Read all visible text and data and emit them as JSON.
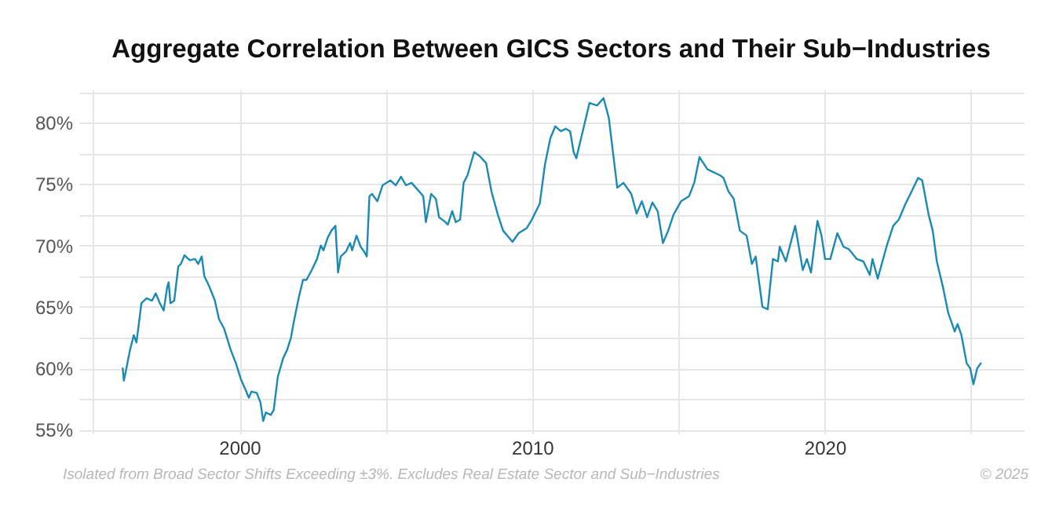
{
  "chart_data": {
    "type": "line",
    "title": "Aggregate Correlation Between GICS Sectors and Their Sub−Industries",
    "annotations": [
      "Isolated from Broad Sector Shifts Exceeding ±3%. Excludes Real Estate Sector and Sub−Industries",
      "© 2025"
    ],
    "xlim": [
      1994.5,
      2026.8
    ],
    "xticks": [
      {
        "value": 1995,
        "label": null
      },
      2000,
      {
        "value": 2005,
        "label": null
      },
      2010,
      {
        "value": 2015,
        "label": null
      },
      2020,
      {
        "value": 2025,
        "label": null
      }
    ],
    "ylim": [
      54.7,
      82.7
    ],
    "yticks": [
      {
        "value": 55,
        "label": "55%"
      },
      {
        "value": 57.5,
        "label": null
      },
      {
        "value": 60,
        "label": "60%"
      },
      {
        "value": 62.5,
        "label": null
      },
      {
        "value": 65,
        "label": "65%"
      },
      {
        "value": 67.5,
        "label": null
      },
      {
        "value": 70,
        "label": "70%"
      },
      {
        "value": 72.5,
        "label": null
      },
      {
        "value": 75,
        "label": "75%"
      },
      {
        "value": 77.5,
        "label": null
      },
      {
        "value": 80,
        "label": "80%"
      },
      {
        "value": 82.5,
        "label": null
      }
    ],
    "grid": true,
    "marker": "none",
    "line_style": "solid",
    "x": [
      1996.01,
      1996.05,
      1996.12,
      1996.26,
      1996.39,
      1996.48,
      1996.56,
      1996.65,
      1996.83,
      1997.01,
      1997.14,
      1997.28,
      1997.41,
      1997.53,
      1997.58,
      1997.64,
      1997.77,
      1997.91,
      1998.0,
      1998.12,
      1998.3,
      1998.48,
      1998.59,
      1998.71,
      1998.8,
      1998.98,
      1999.16,
      1999.3,
      1999.48,
      1999.7,
      1999.88,
      2000.05,
      2000.2,
      2000.32,
      2000.41,
      2000.59,
      2000.72,
      2000.81,
      2000.9,
      2001.07,
      2001.17,
      2001.31,
      2001.49,
      2001.63,
      2001.76,
      2001.85,
      2002.02,
      2002.17,
      2002.29,
      2002.47,
      2002.65,
      2002.78,
      2002.87,
      2003.01,
      2003.14,
      2003.28,
      2003.37,
      2003.46,
      2003.64,
      2003.78,
      2003.85,
      2004.0,
      2004.14,
      2004.26,
      2004.35,
      2004.44,
      2004.53,
      2004.71,
      2004.89,
      2005.16,
      2005.34,
      2005.52,
      2005.69,
      2005.88,
      2006.14,
      2006.28,
      2006.37,
      2006.55,
      2006.71,
      2006.82,
      2006.99,
      2007.12,
      2007.27,
      2007.39,
      2007.54,
      2007.66,
      2007.79,
      2008.02,
      2008.2,
      2008.43,
      2008.61,
      2008.83,
      2009.01,
      2009.33,
      2009.54,
      2009.81,
      2009.99,
      2010.26,
      2010.44,
      2010.62,
      2010.79,
      2010.98,
      2011.15,
      2011.3,
      2011.42,
      2011.51,
      2011.69,
      2011.96,
      2012.22,
      2012.44,
      2012.62,
      2012.91,
      2013.12,
      2013.39,
      2013.57,
      2013.75,
      2013.93,
      2014.11,
      2014.29,
      2014.47,
      2014.65,
      2014.83,
      2015.09,
      2015.36,
      2015.54,
      2015.72,
      2015.99,
      2016.43,
      2016.54,
      2016.71,
      2016.89,
      2017.1,
      2017.33,
      2017.51,
      2017.64,
      2017.87,
      2018.05,
      2018.23,
      2018.4,
      2018.46,
      2018.67,
      2018.99,
      2019.25,
      2019.39,
      2019.53,
      2019.75,
      2019.89,
      2020.01,
      2020.19,
      2020.43,
      2020.64,
      2020.82,
      2021.09,
      2021.32,
      2021.54,
      2021.63,
      2021.81,
      2022.11,
      2022.34,
      2022.53,
      2022.76,
      2022.97,
      2023.19,
      2023.33,
      2023.55,
      2023.69,
      2023.83,
      2024.04,
      2024.22,
      2024.44,
      2024.54,
      2024.67,
      2024.85,
      2024.97,
      2025.08,
      2025.21,
      2025.33
    ],
    "series": [
      {
        "color": "#1b8ab3",
        "values": [
          60.0,
          59.0,
          59.8,
          61.5,
          62.7,
          62.1,
          63.6,
          65.3,
          65.7,
          65.5,
          66.1,
          65.3,
          64.7,
          66.6,
          67.0,
          65.3,
          65.5,
          68.3,
          68.5,
          69.2,
          68.8,
          68.9,
          68.5,
          69.1,
          67.5,
          66.6,
          65.5,
          64.0,
          63.2,
          61.5,
          60.4,
          59.1,
          58.3,
          57.6,
          58.1,
          58.0,
          57.2,
          55.7,
          56.4,
          56.2,
          56.6,
          59.3,
          60.8,
          61.5,
          62.5,
          63.7,
          65.7,
          67.2,
          67.2,
          68.0,
          68.9,
          70.0,
          69.6,
          70.6,
          71.2,
          71.6,
          67.8,
          69.1,
          69.5,
          70.2,
          69.6,
          70.8,
          69.9,
          69.5,
          69.1,
          74.0,
          74.2,
          73.6,
          74.9,
          75.3,
          74.9,
          75.6,
          74.9,
          75.1,
          74.4,
          74.0,
          71.9,
          74.2,
          73.8,
          72.3,
          72.0,
          71.7,
          72.8,
          71.9,
          72.1,
          75.1,
          75.7,
          77.6,
          77.3,
          76.7,
          74.4,
          72.5,
          71.2,
          70.3,
          71.0,
          71.4,
          72.1,
          73.4,
          76.6,
          78.7,
          79.7,
          79.3,
          79.5,
          79.3,
          77.6,
          77.1,
          78.9,
          81.6,
          81.4,
          82.0,
          80.4,
          74.7,
          75.1,
          74.2,
          72.6,
          73.6,
          72.3,
          73.5,
          72.8,
          70.2,
          71.2,
          72.5,
          73.6,
          74.0,
          75.1,
          77.2,
          76.2,
          75.7,
          75.5,
          74.4,
          73.8,
          71.2,
          70.8,
          68.5,
          69.1,
          65.0,
          64.8,
          68.9,
          68.7,
          69.9,
          68.7,
          71.6,
          68.0,
          68.9,
          67.8,
          72.0,
          70.8,
          68.9,
          68.9,
          71.0,
          69.9,
          69.7,
          68.9,
          68.7,
          67.6,
          68.9,
          67.3,
          69.9,
          71.6,
          72.1,
          73.4,
          74.4,
          75.5,
          75.3,
          72.5,
          71.2,
          68.7,
          66.6,
          64.5,
          63.0,
          63.6,
          62.7,
          60.4,
          60.0,
          58.7,
          60.0,
          60.4
        ]
      }
    ]
  }
}
